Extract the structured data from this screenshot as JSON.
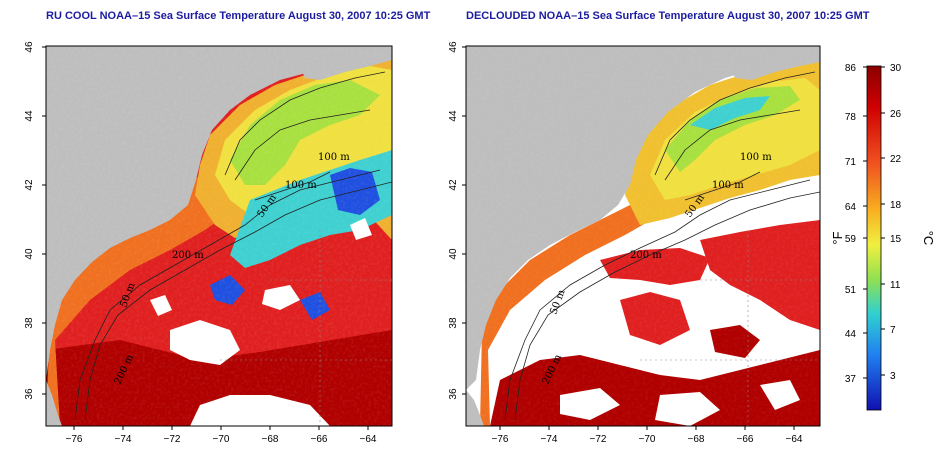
{
  "panels": [
    {
      "title": "RU COOL NOAA–15 Sea Surface Temperature August 30, 2007 10:25 GMT",
      "contour_labels": [
        "100 m",
        "100 m",
        "50 m",
        "200 m",
        "50 m",
        "200 m"
      ]
    },
    {
      "title": "DECLOUDED NOAA–15 Sea Surface Temperature August 30, 2007 10:25 GMT",
      "contour_labels": [
        "100 m",
        "100 m",
        "50 m",
        "200 m",
        "50 m",
        "200 m"
      ]
    }
  ],
  "axes": {
    "x_ticks": [
      "−76",
      "−74",
      "−72",
      "−70",
      "−68",
      "−66",
      "−64"
    ],
    "y_ticks": [
      "36",
      "38",
      "40",
      "42",
      "44",
      "46"
    ]
  },
  "colorbar": {
    "fahrenheit_ticks": [
      "86",
      "78",
      "71",
      "64",
      "59",
      "51",
      "44",
      "37"
    ],
    "celsius_ticks": [
      "30",
      "26",
      "22",
      "18",
      "15",
      "11",
      "7",
      "3"
    ],
    "left_unit": "°F",
    "right_unit": "°C"
  },
  "colors": {
    "land": "#bebebe",
    "cloud": "#ffffff",
    "title": "#1c1ca0",
    "warm_dark": "#b00000",
    "warm": "#e02020",
    "orange": "#f07020",
    "yellow": "#f0e040",
    "green": "#a0e040",
    "cyan": "#40d0d0",
    "blue": "#2050e0"
  }
}
